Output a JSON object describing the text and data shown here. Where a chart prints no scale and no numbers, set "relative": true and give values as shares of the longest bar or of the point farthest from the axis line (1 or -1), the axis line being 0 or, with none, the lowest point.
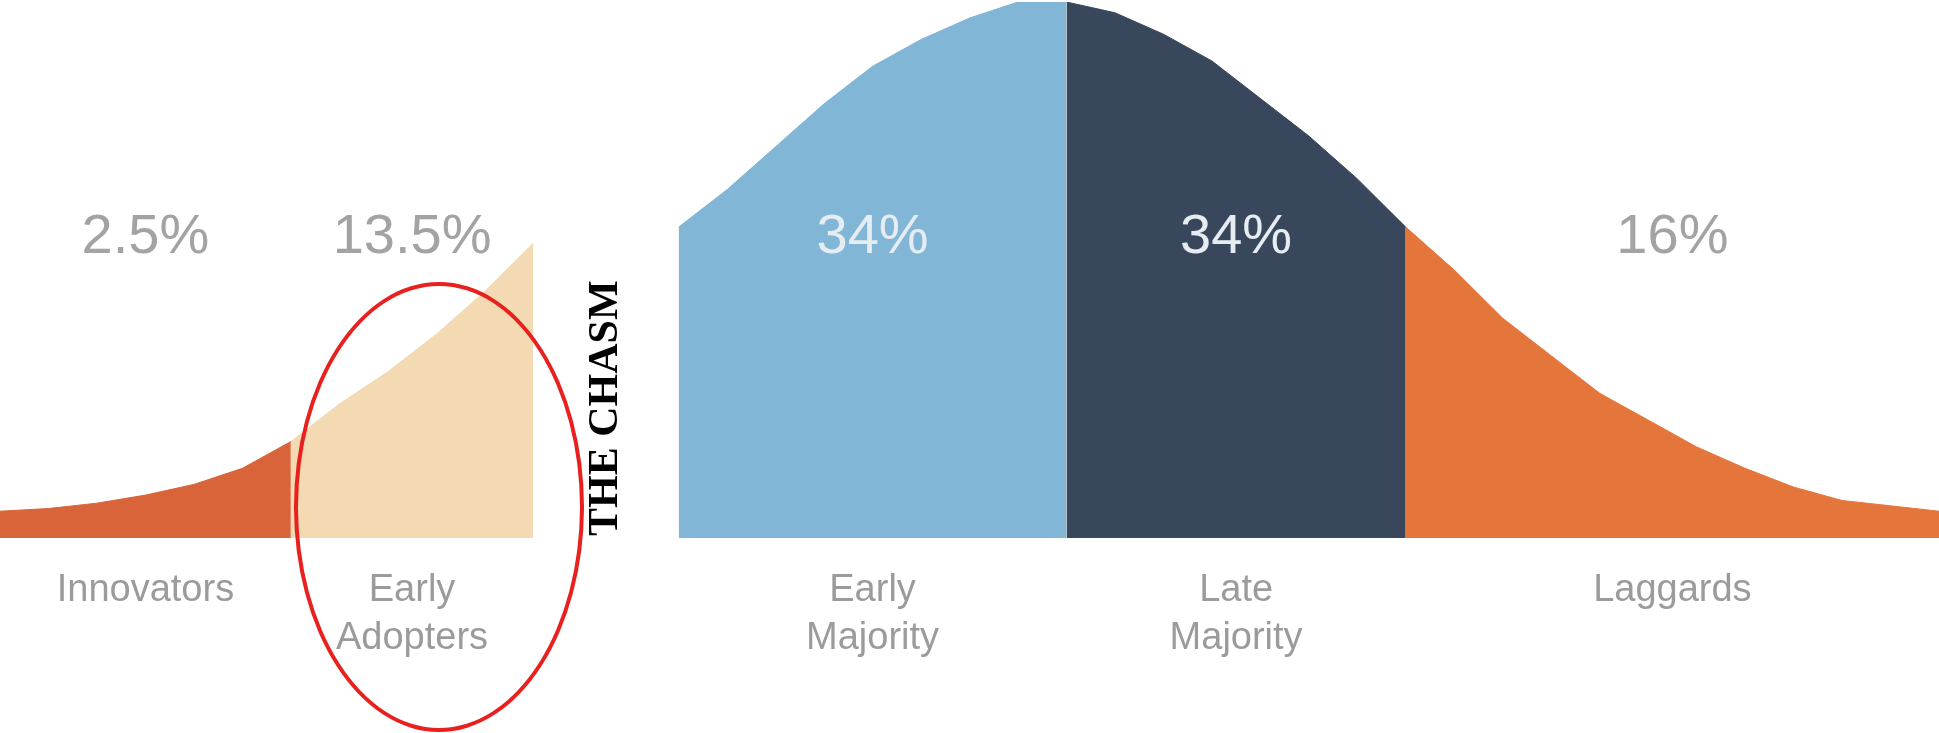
{
  "chart_data": {
    "type": "area",
    "relative": true,
    "tick_labels": false,
    "categories": [
      null,
      null,
      null,
      null,
      null,
      null,
      null,
      null,
      null,
      null,
      null,
      null,
      null,
      null,
      null,
      null,
      null,
      null,
      null,
      null,
      null,
      null,
      null,
      null,
      null,
      null,
      null,
      null,
      null,
      null,
      null,
      null,
      null,
      null,
      null,
      null,
      null,
      null,
      null,
      null,
      null
    ],
    "series": [
      {
        "name": "Innovators",
        "color": "#d9643a",
        "values": [
          0.05,
          0.055,
          0.065,
          0.08,
          0.1,
          0.13,
          0.18,
          null,
          null,
          null,
          null,
          null,
          null,
          null,
          null,
          null,
          null,
          null,
          null,
          null,
          null,
          null,
          null,
          null,
          null,
          null,
          null,
          null,
          null,
          null,
          null,
          null,
          null,
          null,
          null,
          null,
          null,
          null,
          null,
          null,
          null
        ]
      },
      {
        "name": "Early Adopters",
        "color": "#f3dab3",
        "values": [
          null,
          null,
          null,
          null,
          null,
          null,
          0.18,
          0.25,
          0.31,
          0.38,
          0.46,
          0.55,
          null,
          null,
          null,
          null,
          null,
          null,
          null,
          null,
          null,
          null,
          null,
          null,
          null,
          null,
          null,
          null,
          null,
          null,
          null,
          null,
          null,
          null,
          null,
          null,
          null,
          null,
          null,
          null,
          null
        ]
      },
      {
        "name": "Early Majority",
        "color": "#82b6d6",
        "values": [
          null,
          null,
          null,
          null,
          null,
          null,
          null,
          null,
          null,
          null,
          null,
          null,
          null,
          null,
          0.58,
          0.65,
          0.73,
          0.81,
          0.88,
          0.93,
          0.97,
          1,
          1,
          null,
          null,
          null,
          null,
          null,
          null,
          null,
          null,
          null,
          null,
          null,
          null,
          null,
          null,
          null,
          null,
          null,
          null
        ]
      },
      {
        "name": "Late Majority",
        "color": "#38475b",
        "values": [
          null,
          null,
          null,
          null,
          null,
          null,
          null,
          null,
          null,
          null,
          null,
          null,
          null,
          null,
          null,
          null,
          null,
          null,
          null,
          null,
          null,
          null,
          1,
          0.98,
          0.94,
          0.89,
          0.82,
          0.75,
          0.67,
          0.58,
          null,
          null,
          null,
          null,
          null,
          null,
          null,
          null,
          null,
          null,
          null
        ]
      },
      {
        "name": "Laggards",
        "color": "#e5763b",
        "values": [
          null,
          null,
          null,
          null,
          null,
          null,
          null,
          null,
          null,
          null,
          null,
          null,
          null,
          null,
          null,
          null,
          null,
          null,
          null,
          null,
          null,
          null,
          null,
          null,
          null,
          null,
          null,
          null,
          null,
          0.58,
          0.5,
          0.41,
          0.34,
          0.27,
          0.22,
          0.17,
          0.13,
          0.095,
          0.07,
          0.06,
          0.05
        ]
      }
    ],
    "annotations": [
      "2.5%",
      "13.5%",
      "34%",
      "34%",
      "16%",
      "THE CHASM"
    ]
  }
}
